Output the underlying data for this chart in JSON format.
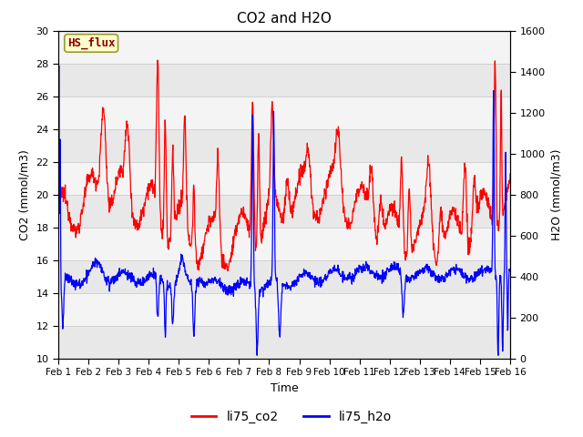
{
  "title": "CO2 and H2O",
  "xlabel": "Time",
  "ylabel_left": "CO2 (mmol/m3)",
  "ylabel_right": "H2O (mmol/m3)",
  "legend_label": "HS_flux",
  "series_labels": [
    "li75_co2",
    "li75_h2o"
  ],
  "series_colors": [
    "red",
    "blue"
  ],
  "co2_ylim": [
    10,
    30
  ],
  "h2o_ylim": [
    0,
    1600
  ],
  "co2_yticks": [
    10,
    12,
    14,
    16,
    18,
    20,
    22,
    24,
    26,
    28,
    30
  ],
  "h2o_yticks": [
    0,
    200,
    400,
    600,
    800,
    1000,
    1200,
    1400,
    1600
  ],
  "xtick_labels": [
    "Feb 1",
    "Feb 2",
    "Feb 3",
    "Feb 4",
    "Feb 5",
    "Feb 6",
    "Feb 7",
    "Feb 8",
    "Feb 9",
    "Feb 10",
    "Feb 11",
    "Feb 12",
    "Feb 13",
    "Feb 14",
    "Feb 15",
    "Feb 16"
  ],
  "bg_color": "#ffffff",
  "plot_bg_upper": "#e8e8e8",
  "plot_bg_lower": "#f0f0f0",
  "label_box_color": "#ffffcc",
  "label_box_edge_color": "#999933",
  "label_text_color": "#8b0000",
  "grid_color": "#cccccc",
  "linewidth": 0.9
}
